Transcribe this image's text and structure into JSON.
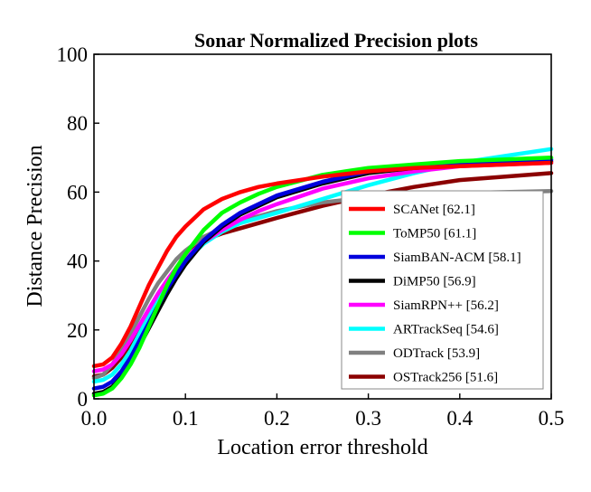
{
  "chart_data": {
    "type": "line",
    "title": "Sonar Normalized Precision plots",
    "xlabel": "Location error threshold",
    "ylabel": "Distance Precision",
    "xlim": [
      0,
      0.5
    ],
    "ylim": [
      0,
      100
    ],
    "x_ticks": [
      "0.0",
      "0.1",
      "0.2",
      "0.3",
      "0.4",
      "0.5"
    ],
    "y_ticks": [
      "0",
      "20",
      "40",
      "60",
      "80",
      "100"
    ],
    "grid": false,
    "legend_position": "lower-right",
    "x": [
      0.0,
      0.01,
      0.02,
      0.03,
      0.04,
      0.05,
      0.06,
      0.07,
      0.08,
      0.09,
      0.1,
      0.12,
      0.14,
      0.16,
      0.18,
      0.2,
      0.25,
      0.3,
      0.35,
      0.4,
      0.45,
      0.5
    ],
    "series": [
      {
        "name": "SCANet [62.1]",
        "color": "#ff0000",
        "values": [
          9.5,
          10,
          12,
          16,
          21,
          27,
          33,
          38,
          43,
          47,
          50,
          55,
          58,
          60,
          61.5,
          62.5,
          64.5,
          66,
          67,
          67.5,
          68,
          68.5
        ]
      },
      {
        "name": "ToMP50 [61.1]",
        "color": "#00ff00",
        "values": [
          1,
          1.5,
          3,
          6,
          10,
          15,
          21,
          27,
          33,
          38,
          42,
          49,
          54,
          57,
          59.5,
          61.5,
          65,
          67,
          68,
          69,
          69.5,
          70
        ]
      },
      {
        "name": "SiamBAN-ACM [58.1]",
        "color": "#0000dd",
        "values": [
          3,
          3.5,
          5,
          8,
          12,
          17,
          22,
          27,
          32,
          36,
          40,
          46,
          50.5,
          54,
          56.5,
          59,
          63,
          66,
          67.5,
          68.5,
          69,
          69.5
        ]
      },
      {
        "name": "DiMP50 [56.9]",
        "color": "#000000",
        "values": [
          1.5,
          2,
          3.5,
          6.5,
          10.5,
          15.5,
          20.5,
          25.5,
          30.5,
          35,
          39,
          45.5,
          50,
          53.5,
          56,
          58.5,
          62.5,
          65.5,
          67,
          68,
          68.5,
          69
        ]
      },
      {
        "name": "SiamRPN++ [56.2]",
        "color": "#ff00ff",
        "values": [
          8,
          8.5,
          10,
          13,
          17,
          21.5,
          26,
          30.5,
          34.5,
          38,
          41,
          45.5,
          49,
          52,
          54.5,
          56.5,
          61,
          64,
          66,
          67.5,
          68,
          68.5
        ]
      },
      {
        "name": "ARTrackSeq [54.6]",
        "color": "#00ffff",
        "values": [
          5,
          5.5,
          7,
          10,
          14,
          19,
          24,
          29,
          33.5,
          37,
          40,
          45,
          48.5,
          51,
          52.5,
          54,
          58,
          62,
          65.5,
          68.5,
          70.5,
          72.5
        ]
      },
      {
        "name": "ODTrack [53.9]",
        "color": "#808080",
        "values": [
          6,
          7,
          10,
          14,
          19,
          24,
          29,
          33.5,
          37,
          40.5,
          43,
          47,
          49.5,
          51.5,
          53,
          54.5,
          57,
          58.5,
          59.3,
          59.7,
          60,
          60.3
        ]
      },
      {
        "name": "OSTrack256 [51.6]",
        "color": "#8b0000",
        "values": [
          6.5,
          7,
          9,
          12,
          16,
          20.5,
          25,
          29.5,
          34,
          38,
          41.5,
          46,
          48,
          49.5,
          51,
          52.5,
          56,
          59,
          61.5,
          63.5,
          64.5,
          65.5
        ]
      }
    ]
  }
}
